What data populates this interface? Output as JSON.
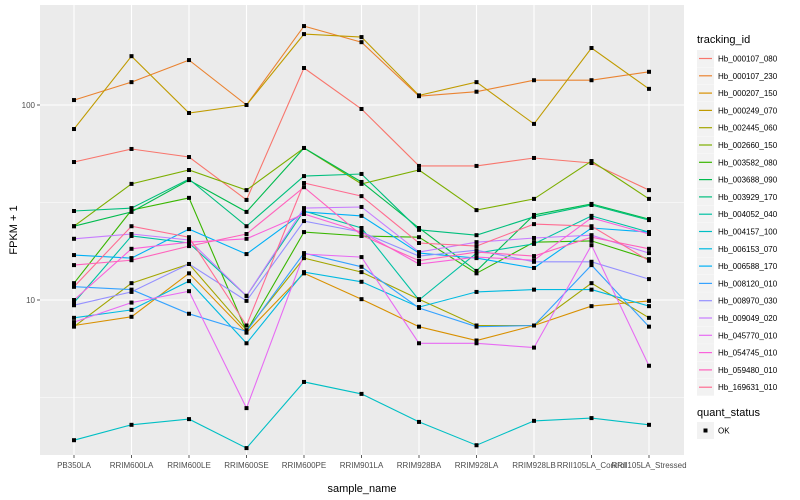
{
  "chart_data": {
    "type": "line",
    "title": "",
    "xlabel": "sample_name",
    "ylabel": "FPKM + 1",
    "y_scale": "log10",
    "ylim": [
      1.6,
      300
    ],
    "y_ticks": [
      10,
      100
    ],
    "y_tick_labels": [
      "10",
      "100"
    ],
    "grid": true,
    "legend_position": "right",
    "categories": [
      "PB350LA",
      "RRIM600LA",
      "RRIM600LE",
      "RRIM600SE",
      "RRIM600PE",
      "RRIM901LA",
      "RRIM928BA",
      "RRIM928LA",
      "RRIM928LB",
      "RRII105LA_Control",
      "RRII105LA_Stressed"
    ],
    "legend_title": "tracking_id",
    "shape_legend_title": "quant_status",
    "shape_legend_items": [
      "OK"
    ],
    "series": [
      {
        "name": "Hb_000107_080",
        "color": "#F8766D",
        "values": [
          51.0,
          59.5,
          54.1,
          32.6,
          154.8,
          95.4,
          48.7,
          48.7,
          53.5,
          50.4,
          36.6
        ]
      },
      {
        "name": "Hb_000107_230",
        "color": "#EA8331",
        "values": [
          106,
          131,
          170,
          100,
          254,
          210,
          111,
          117,
          134,
          134,
          148
        ]
      },
      {
        "name": "Hb_000207_150",
        "color": "#D89000",
        "values": [
          7.4,
          8.2,
          13.7,
          6.8,
          13.7,
          10.1,
          7.3,
          6.2,
          7.4,
          9.3,
          9.9
        ]
      },
      {
        "name": "Hb_000249_070",
        "color": "#C09B00",
        "values": [
          75.3,
          178,
          91.0,
          100,
          231,
          223,
          112,
          131,
          80.0,
          196,
          121
        ]
      },
      {
        "name": "Hb_002445_060",
        "color": "#A3A500",
        "values": [
          7.3,
          12.2,
          15.3,
          7.0,
          16.4,
          13.9,
          10.1,
          7.4,
          7.4,
          12.2,
          8.1
        ]
      },
      {
        "name": "Hb_002660_150",
        "color": "#7CAE00",
        "values": [
          23.9,
          39.4,
          46.4,
          36.6,
          60.2,
          39.4,
          46.4,
          28.9,
          33.0,
          51.6,
          33.0
        ]
      },
      {
        "name": "Hb_003582_080",
        "color": "#39B600",
        "values": [
          12.2,
          28.9,
          33.4,
          6.9,
          22.3,
          21.3,
          21.0,
          13.7,
          19.8,
          20.1,
          16.2
        ]
      },
      {
        "name": "Hb_003688_090",
        "color": "#00BB4E",
        "values": [
          23.9,
          28.3,
          41.2,
          28.3,
          60.2,
          40.3,
          23.4,
          14.1,
          27.3,
          31.1,
          26.0
        ]
      },
      {
        "name": "Hb_003929_170",
        "color": "#00BF7D",
        "values": [
          28.6,
          29.6,
          41.7,
          23.9,
          43.2,
          44.3,
          22.9,
          21.5,
          26.7,
          30.7,
          25.7
        ]
      },
      {
        "name": "Hb_004052_040",
        "color": "#00C1A3",
        "values": [
          9.7,
          21.3,
          19.6,
          10.5,
          28.6,
          23.4,
          10.0,
          17.4,
          19.4,
          27.0,
          22.3
        ]
      },
      {
        "name": "Hb_004157_100",
        "color": "#00BFC4",
        "values": [
          1.91,
          2.29,
          2.45,
          1.74,
          3.8,
          3.3,
          2.37,
          1.8,
          2.4,
          2.48,
          2.29
        ]
      },
      {
        "name": "Hb_006153_070",
        "color": "#00BAE0",
        "values": [
          8.1,
          8.9,
          12.5,
          6.0,
          13.9,
          12.4,
          9.2,
          11.0,
          11.3,
          11.3,
          9.3
        ]
      },
      {
        "name": "Hb_006588_170",
        "color": "#00B0F6",
        "values": [
          17.0,
          16.4,
          23.1,
          17.2,
          28.3,
          27.0,
          17.4,
          16.4,
          14.6,
          23.4,
          22.3
        ]
      },
      {
        "name": "Hb_008120_010",
        "color": "#35A2FF",
        "values": [
          11.7,
          11.3,
          8.5,
          6.9,
          17.4,
          14.8,
          9.1,
          7.3,
          7.4,
          15.1,
          7.3
        ]
      },
      {
        "name": "Hb_008970_030",
        "color": "#9590FF",
        "values": [
          9.4,
          11.0,
          15.3,
          9.9,
          25.4,
          22.3,
          16.8,
          18.0,
          15.7,
          15.7,
          12.8
        ]
      },
      {
        "name": "Hb_009049_020",
        "color": "#C77CFF",
        "values": [
          20.6,
          21.8,
          20.3,
          10.5,
          29.6,
          30.0,
          17.6,
          19.8,
          20.8,
          21.5,
          17.4
        ]
      },
      {
        "name": "Hb_045770_010",
        "color": "#E76BF3",
        "values": [
          7.7,
          9.7,
          11.1,
          2.79,
          17.2,
          16.6,
          6.0,
          6.0,
          5.7,
          19.1,
          4.6
        ]
      },
      {
        "name": "Hb_054745_010",
        "color": "#FA62DB",
        "values": [
          10.0,
          18.3,
          19.8,
          20.6,
          27.6,
          22.3,
          15.3,
          16.6,
          16.0,
          26.4,
          21.8
        ]
      },
      {
        "name": "Hb_059480_010",
        "color": "#FF62BC",
        "values": [
          15.1,
          16.0,
          18.9,
          21.8,
          37.9,
          21.5,
          15.9,
          17.6,
          16.8,
          21.0,
          18.3
        ]
      },
      {
        "name": "Hb_169631_010",
        "color": "#FF6C91",
        "values": [
          11.7,
          23.9,
          21.0,
          7.4,
          39.8,
          34.1,
          19.6,
          18.9,
          24.5,
          23.9,
          15.9
        ]
      }
    ]
  }
}
